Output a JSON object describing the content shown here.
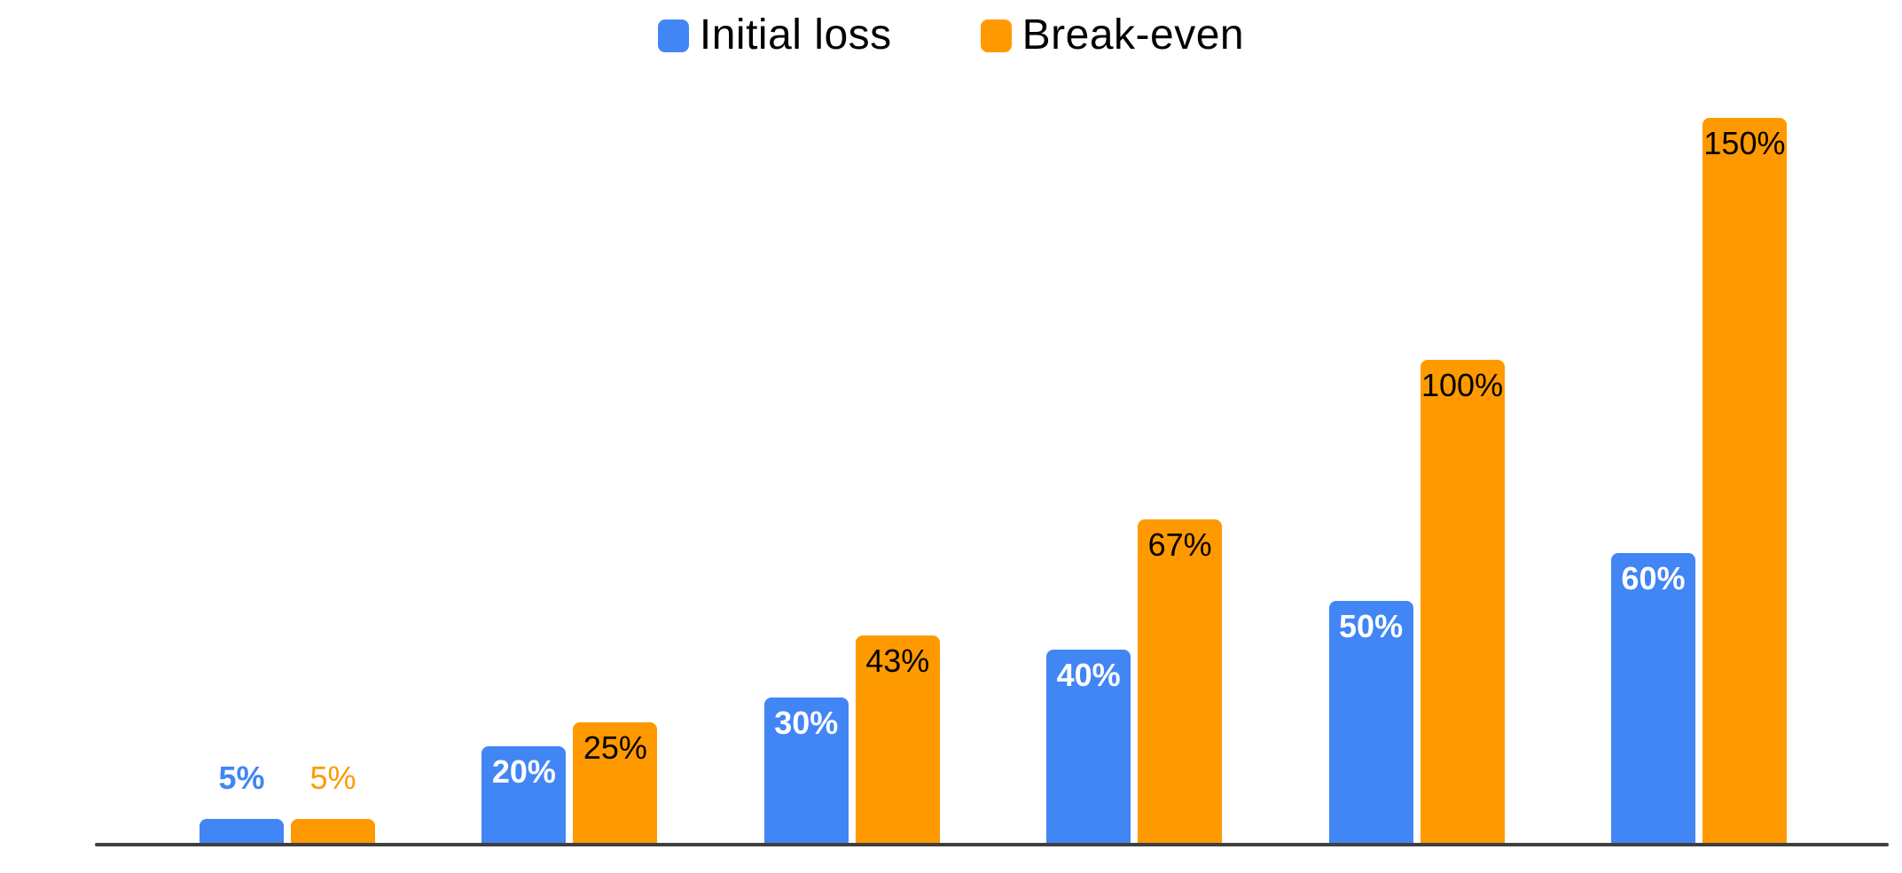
{
  "chart_data": {
    "type": "bar",
    "title": "",
    "legend": {
      "position": "top"
    },
    "grid": false,
    "y_axis_visible": false,
    "x_axis_labels_visible": false,
    "axis_color": "#3F3F3F",
    "background_color": "#FFFFFF",
    "unit": "%",
    "ylim": [
      0,
      175
    ],
    "series": [
      {
        "name": "Initial loss",
        "color": "#4285F4",
        "label_weight": "700",
        "points": [
          {
            "value": 5,
            "label": "5%",
            "label_position": "above",
            "label_color": "#4285F4"
          },
          {
            "value": 20,
            "label": "20%",
            "label_position": "inside",
            "label_color": "#FFFFFF"
          },
          {
            "value": 30,
            "label": "30%",
            "label_position": "inside",
            "label_color": "#FFFFFF"
          },
          {
            "value": 40,
            "label": "40%",
            "label_position": "inside",
            "label_color": "#FFFFFF"
          },
          {
            "value": 50,
            "label": "50%",
            "label_position": "inside",
            "label_color": "#FFFFFF"
          },
          {
            "value": 60,
            "label": "60%",
            "label_position": "inside",
            "label_color": "#FFFFFF"
          }
        ]
      },
      {
        "name": "Break-even",
        "color": "#FF9900",
        "label_weight": "400",
        "points": [
          {
            "value": 5,
            "label": "5%",
            "label_position": "above",
            "label_color": "#FF9900"
          },
          {
            "value": 25,
            "label": "25%",
            "label_position": "inside",
            "label_color": "#000000"
          },
          {
            "value": 43,
            "label": "43%",
            "label_position": "inside",
            "label_color": "#000000"
          },
          {
            "value": 67,
            "label": "67%",
            "label_position": "inside",
            "label_color": "#000000"
          },
          {
            "value": 100,
            "label": "100%",
            "label_position": "inside",
            "label_color": "#000000"
          },
          {
            "value": 150,
            "label": "150%",
            "label_position": "inside",
            "label_color": "#000000"
          }
        ]
      }
    ]
  }
}
